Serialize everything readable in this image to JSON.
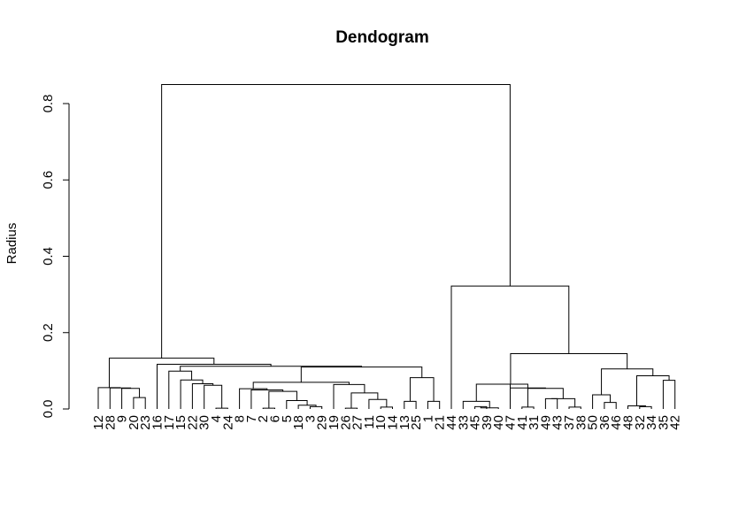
{
  "chart_data": {
    "type": "dendrogram",
    "title": "Dendogram",
    "xlabel": "",
    "ylabel": "Radius",
    "ylim": [
      0,
      0.8
    ],
    "yticks": [
      "0.0",
      "0.2",
      "0.4",
      "0.6",
      "0.8"
    ],
    "leaves": [
      "12",
      "28",
      "9",
      "20",
      "23",
      "16",
      "17",
      "15",
      "22",
      "30",
      "4",
      "24",
      "8",
      "7",
      "2",
      "6",
      "5",
      "18",
      "3",
      "29",
      "19",
      "26",
      "27",
      "11",
      "10",
      "14",
      "13",
      "25",
      "1",
      "21",
      "44",
      "33",
      "45",
      "39",
      "40",
      "47",
      "41",
      "31",
      "49",
      "43",
      "37",
      "38",
      "50",
      "36",
      "46",
      "48",
      "32",
      "34",
      "35",
      "42"
    ],
    "merges": [
      {
        "id": "m1",
        "left": "L4",
        "right": "L5",
        "height": 0.03
      },
      {
        "id": "m2",
        "left": "L3",
        "right": "m1",
        "height": 0.054
      },
      {
        "id": "m3",
        "left": "L2",
        "right": "m2",
        "height": 0.055
      },
      {
        "id": "m4",
        "left": "L1",
        "right": "m3",
        "height": 0.056
      },
      {
        "id": "m5",
        "left": "L11",
        "right": "L12",
        "height": 0.002
      },
      {
        "id": "m6",
        "left": "L10",
        "right": "m5",
        "height": 0.062
      },
      {
        "id": "m7",
        "left": "L9",
        "right": "m6",
        "height": 0.066
      },
      {
        "id": "m8",
        "left": "L8",
        "right": "m7",
        "height": 0.076
      },
      {
        "id": "m9",
        "left": "L7",
        "right": "m8",
        "height": 0.099
      },
      {
        "id": "m10",
        "left": "L15",
        "right": "L16",
        "height": 0.002
      },
      {
        "id": "m11",
        "left": "L19",
        "right": "L20",
        "height": 0.006
      },
      {
        "id": "m12",
        "left": "L18",
        "right": "m11",
        "height": 0.01
      },
      {
        "id": "m13",
        "left": "L17",
        "right": "m12",
        "height": 0.022
      },
      {
        "id": "m14",
        "left": "m10",
        "right": "m13",
        "height": 0.046
      },
      {
        "id": "m15",
        "left": "L14",
        "right": "m14",
        "height": 0.05
      },
      {
        "id": "m16",
        "left": "L13",
        "right": "m15",
        "height": 0.053
      },
      {
        "id": "m17",
        "left": "L22",
        "right": "L23",
        "height": 0.002
      },
      {
        "id": "m18",
        "left": "L25",
        "right": "L26",
        "height": 0.005
      },
      {
        "id": "m19",
        "left": "L24",
        "right": "m18",
        "height": 0.025
      },
      {
        "id": "m20",
        "left": "m17",
        "right": "m19",
        "height": 0.042
      },
      {
        "id": "m21",
        "left": "L21",
        "right": "m20",
        "height": 0.064
      },
      {
        "id": "m22",
        "left": "m16",
        "right": "m21",
        "height": 0.07
      },
      {
        "id": "m23",
        "left": "L27",
        "right": "L28",
        "height": 0.02
      },
      {
        "id": "m24",
        "left": "L29",
        "right": "L30",
        "height": 0.02
      },
      {
        "id": "m25",
        "left": "m23",
        "right": "m24",
        "height": 0.082
      },
      {
        "id": "m26",
        "left": "m22",
        "right": "m25",
        "height": 0.11
      },
      {
        "id": "m27",
        "left": "m9",
        "right": "m26",
        "height": 0.112
      },
      {
        "id": "m28",
        "left": "L6",
        "right": "m27",
        "height": 0.117
      },
      {
        "id": "m29",
        "left": "m4",
        "right": "m28",
        "height": 0.133
      },
      {
        "id": "m30",
        "left": "L33",
        "right": "L34",
        "height": 0.006
      },
      {
        "id": "m31",
        "left": "m30",
        "right": "L35",
        "height": 0.003
      },
      {
        "id": "m32",
        "left": "L32",
        "right": "m31",
        "height": 0.02
      },
      {
        "id": "m33",
        "left": "m32",
        "right": "L36",
        "height": 0.065
      },
      {
        "id": "m34",
        "left": "L37",
        "right": "L38",
        "height": 0.005
      },
      {
        "id": "m35",
        "left": "L41",
        "right": "L42",
        "height": 0.005
      },
      {
        "id": "m36",
        "left": "L39",
        "right": "L40",
        "height": 0.027
      },
      {
        "id": "m37",
        "left": "m36",
        "right": "m35",
        "height": 0.027
      },
      {
        "id": "m38",
        "left": "m34",
        "right": "m37",
        "height": 0.054
      },
      {
        "id": "m39",
        "left": "L36",
        "right": "m38",
        "height": 0.055
      },
      {
        "id": "m40",
        "left": "m33",
        "right": "m39",
        "height": 0.065
      },
      {
        "id": "m41",
        "left": "L44",
        "right": "L45",
        "height": 0.017
      },
      {
        "id": "m42",
        "left": "L43",
        "right": "m41",
        "height": 0.037
      },
      {
        "id": "m43",
        "left": "L47",
        "right": "L48",
        "height": 0.006
      },
      {
        "id": "m44",
        "left": "L46",
        "right": "m43",
        "height": 0.008
      },
      {
        "id": "m45",
        "left": "L49",
        "right": "L50",
        "height": 0.075
      },
      {
        "id": "m46",
        "left": "m44",
        "right": "m45",
        "height": 0.087
      },
      {
        "id": "m47",
        "left": "m42",
        "right": "m46",
        "height": 0.105
      },
      {
        "id": "m48",
        "left": "m40",
        "right": "m47",
        "height": 0.145
      },
      {
        "id": "m49",
        "left": "m48",
        "right": "L31",
        "height": 0.322
      },
      {
        "id": "m50",
        "left": "m29",
        "right": "m49",
        "height": 0.85
      }
    ]
  }
}
